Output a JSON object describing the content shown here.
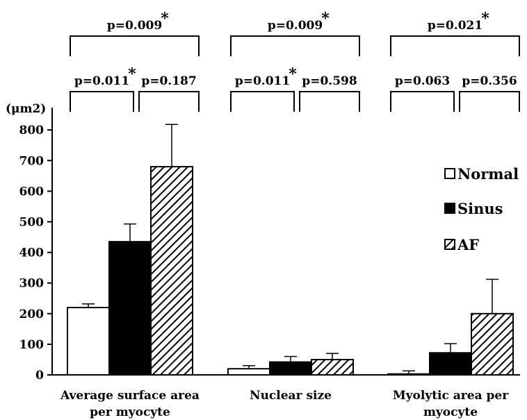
{
  "chart_data": {
    "type": "bar",
    "y_unit_label": "(μm2)",
    "ylim": [
      0,
      850
    ],
    "yticks": [
      0,
      100,
      200,
      300,
      400,
      500,
      600,
      700,
      800
    ],
    "grid": false,
    "legend_position": "right",
    "categories": [
      {
        "line1": "Average surface area",
        "line2": "per myocyte"
      },
      {
        "line1": "Nuclear size",
        "line2": ""
      },
      {
        "line1": "Myolytic area per",
        "line2": "myocyte"
      }
    ],
    "series": [
      {
        "name": "Normal",
        "fill": "white",
        "values": [
          220,
          20,
          3
        ],
        "errors": [
          12,
          10,
          10
        ]
      },
      {
        "name": "Sinus",
        "fill": "black",
        "values": [
          435,
          42,
          72
        ],
        "errors": [
          58,
          18,
          30
        ]
      },
      {
        "name": "AF",
        "fill": "hatch",
        "values": [
          680,
          50,
          200
        ],
        "errors": [
          138,
          20,
          112
        ]
      }
    ],
    "comparisons": [
      {
        "group": 0,
        "pair": "normal-sinus",
        "label": "p=0.011",
        "significant": true
      },
      {
        "group": 0,
        "pair": "sinus-af",
        "label": "p=0.187",
        "significant": false
      },
      {
        "group": 0,
        "pair": "normal-af",
        "label": "p=0.009",
        "significant": true
      },
      {
        "group": 1,
        "pair": "normal-sinus",
        "label": "p=0.011",
        "significant": true
      },
      {
        "group": 1,
        "pair": "sinus-af",
        "label": "p=0.598",
        "significant": false
      },
      {
        "group": 1,
        "pair": "normal-af",
        "label": "p=0.009",
        "significant": true
      },
      {
        "group": 2,
        "pair": "normal-sinus",
        "label": "p=0.063",
        "significant": false
      },
      {
        "group": 2,
        "pair": "sinus-af",
        "label": "p=0.356",
        "significant": false
      },
      {
        "group": 2,
        "pair": "normal-af",
        "label": "p=0.021",
        "significant": true
      }
    ],
    "significance_marker": "*"
  }
}
